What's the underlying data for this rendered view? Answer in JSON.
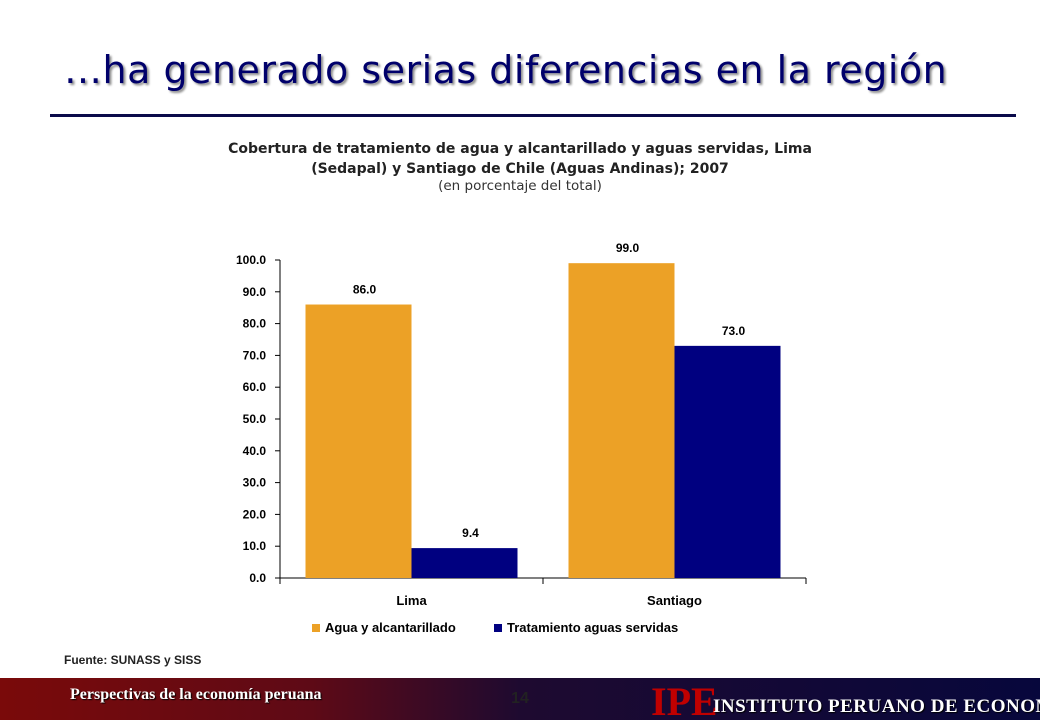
{
  "slide": {
    "title": "…ha generado serias diferencias en la región",
    "chart_heading_line1": "Cobertura de tratamiento de agua y alcantarillado y aguas servidas, Lima",
    "chart_heading_line2": "(Sedapal) y Santiago de Chile (Aguas Andinas); 2007",
    "chart_subheading": "(en porcentaje del total)",
    "source": "Fuente: SUNASS y SISS"
  },
  "footer": {
    "left_text": "Perspectivas de la economía peruana",
    "page_number": "14",
    "logo": "IPE",
    "logo_text": "INSTITUTO PERUANO DE ECONOMÍA"
  },
  "chart_data": {
    "type": "bar",
    "categories": [
      "Lima",
      "Santiago"
    ],
    "series": [
      {
        "name": "Agua y alcantarillado",
        "values": [
          86.0,
          99.0
        ],
        "color": "#eca126"
      },
      {
        "name": "Tratamiento aguas servidas",
        "values": [
          9.4,
          73.0
        ],
        "color": "#000080"
      }
    ],
    "ylim": [
      0,
      100
    ],
    "yticks": [
      "0.0",
      "10.0",
      "20.0",
      "30.0",
      "40.0",
      "50.0",
      "60.0",
      "70.0",
      "80.0",
      "90.0",
      "100.0"
    ],
    "data_labels": [
      [
        "86.0",
        "99.0"
      ],
      [
        "9.4",
        "73.0"
      ]
    ],
    "grid": false,
    "legend_position": "bottom"
  }
}
